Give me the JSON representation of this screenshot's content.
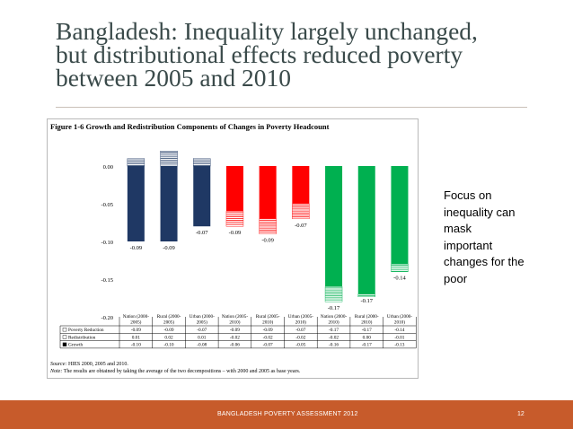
{
  "slide": {
    "title_lines": [
      "Bangladesh: Inequality largely unchanged,",
      "but distributional effects reduced poverty",
      "between 2005 and 2010"
    ],
    "side_note_lines": [
      "Focus on",
      "inequality can",
      "mask",
      "important",
      "changes for the",
      "poor"
    ],
    "footer_text": "BANGLADESH POVERTY ASSESSMENT 2012",
    "page_number": "12"
  },
  "figure": {
    "title": "Figure 1-6 Growth and Redistribution  Components of Changes in Poverty Headcount",
    "source_label": "Source:",
    "source_text": " HIES 2000, 2005 and 2010.",
    "note_label": "Note:",
    "note_text": " The results are obtained by taking the average of the two decompositions – with 2000 and 2005 as base years."
  },
  "chart_data": {
    "type": "bar",
    "categories": [
      "Nation (2000-2005)",
      "Rural (2000-2005)",
      "Urban (2000-2005)",
      "Nation (2005-2010)",
      "Rural (2005-2010)",
      "Urban (2005-2010)",
      "Nation (2000-2010)",
      "Rural (2000-2010)",
      "Urban (2000-2010)"
    ],
    "category_line1": [
      "Nation (2000-",
      "Rural (2000-",
      "Urban (2000-",
      "Nation (2005-",
      "Rural (2005-",
      "Urban (2005-",
      "Nation (2000-",
      "Rural (2000-",
      "Urban (2000-"
    ],
    "category_line2": [
      "2005)",
      "2005)",
      "2005)",
      "2010)",
      "2010)",
      "2010)",
      "2010)",
      "2010)",
      "2010)"
    ],
    "period_colors": [
      "#1f3864",
      "#1f3864",
      "#1f3864",
      "#ff0000",
      "#ff0000",
      "#ff0000",
      "#00b050",
      "#00b050",
      "#00b050"
    ],
    "series": [
      {
        "name": "Poverty Reduction",
        "values": [
          -0.09,
          -0.09,
          -0.07,
          -0.09,
          -0.09,
          -0.07,
          -0.17,
          -0.17,
          -0.14
        ]
      },
      {
        "name": "Redistribution",
        "values": [
          0.01,
          0.02,
          0.01,
          -0.02,
          -0.02,
          -0.02,
          -0.02,
          0.0,
          -0.01
        ]
      },
      {
        "name": "Growth",
        "values": [
          -0.1,
          -0.1,
          -0.08,
          -0.06,
          -0.07,
          -0.05,
          -0.16,
          -0.17,
          -0.13
        ]
      }
    ],
    "table_rows": [
      {
        "label": "Poverty Reduction",
        "cells": [
          "-0.09",
          "-0.09",
          "-0.07",
          "-0.09",
          "-0.09",
          "-0.07",
          "-0.17",
          "-0.17",
          "-0.14"
        ]
      },
      {
        "label": "Redistribution",
        "cells": [
          "0.01",
          "0.02",
          "0.01",
          "-0.02",
          "-0.02",
          "-0.02",
          "-0.02",
          "0.00",
          "-0.01"
        ]
      },
      {
        "label": "Growth",
        "cells": [
          "-0.10",
          "-0.10",
          "-0.08",
          "-0.06",
          "-0.07",
          "-0.05",
          "-0.16",
          "-0.17",
          "-0.13"
        ]
      }
    ],
    "data_labels": [
      "-0.09",
      "-0.09",
      "-0.07",
      "-0.09",
      "-0.09",
      "-0.07",
      "-0.17",
      "-0.17",
      "-0.14"
    ],
    "yticks": [
      "0.00",
      "-0.05",
      "-0.10",
      "-0.15",
      "-0.20"
    ],
    "ylim": [
      -0.2,
      0.0
    ],
    "grid": false,
    "legend": "table-below"
  }
}
